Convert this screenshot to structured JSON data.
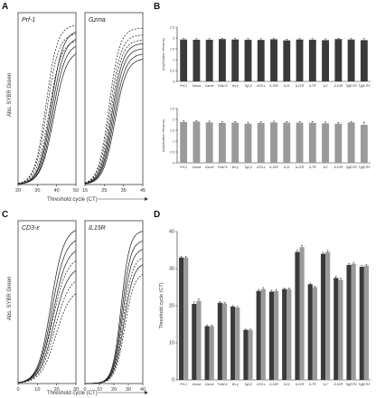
{
  "panels": {
    "A": "A",
    "B": "B",
    "C": "C",
    "D": "D"
  },
  "shared_labels": {
    "amp_ylabel": "Abs. SYBR Green",
    "amp_xlabel": "Threshold cycle (CT)"
  },
  "colors": {
    "dark_bar": "#3a3a3a",
    "light_bar": "#9a9a9a",
    "curve": "#1a1a1a"
  },
  "chart_data": [
    {
      "id": "A1",
      "type": "line",
      "title": "Prf-1",
      "xlim": [
        20,
        50
      ],
      "xticks": [
        20,
        30,
        40,
        50
      ],
      "ylabel": "Abs. SYBR Green",
      "series": [
        {
          "midpoint": 34.5,
          "slope": 0.34,
          "plateau": 0.95,
          "style": "dashed"
        },
        {
          "midpoint": 35.0,
          "slope": 0.33,
          "plateau": 0.9,
          "style": "dashed"
        },
        {
          "midpoint": 36.0,
          "slope": 0.32,
          "plateau": 0.86,
          "style": "dashed"
        },
        {
          "midpoint": 37.0,
          "slope": 0.32,
          "plateau": 0.92,
          "style": "solid"
        },
        {
          "midpoint": 37.5,
          "slope": 0.31,
          "plateau": 0.88,
          "style": "solid"
        },
        {
          "midpoint": 38.0,
          "slope": 0.31,
          "plateau": 0.84,
          "style": "solid"
        },
        {
          "midpoint": 38.5,
          "slope": 0.3,
          "plateau": 0.8,
          "style": "solid"
        }
      ]
    },
    {
      "id": "A2",
      "type": "line",
      "title": "Gzma",
      "xlim": [
        15,
        45
      ],
      "xticks": [
        15,
        25,
        35,
        45
      ],
      "series": [
        {
          "midpoint": 27.5,
          "slope": 0.36,
          "plateau": 0.93,
          "style": "dashed"
        },
        {
          "midpoint": 28.0,
          "slope": 0.35,
          "plateau": 0.89,
          "style": "dashed"
        },
        {
          "midpoint": 28.5,
          "slope": 0.35,
          "plateau": 0.86,
          "style": "dashed"
        },
        {
          "midpoint": 29.0,
          "slope": 0.34,
          "plateau": 0.84,
          "style": "solid"
        },
        {
          "midpoint": 29.5,
          "slope": 0.34,
          "plateau": 0.81,
          "style": "solid"
        },
        {
          "midpoint": 30.0,
          "slope": 0.33,
          "plateau": 0.78,
          "style": "solid"
        },
        {
          "midpoint": 30.5,
          "slope": 0.33,
          "plateau": 0.75,
          "style": "solid"
        }
      ]
    },
    {
      "id": "C1",
      "type": "line",
      "title": "CD3-ε",
      "xlim": [
        0,
        30
      ],
      "xticks": [
        0,
        10,
        20,
        30
      ],
      "ylabel": "Abs. SYBR Green",
      "series": [
        {
          "midpoint": 17.0,
          "slope": 0.3,
          "plateau": 0.98,
          "style": "solid"
        },
        {
          "midpoint": 17.5,
          "slope": 0.29,
          "plateau": 0.92,
          "style": "solid"
        },
        {
          "midpoint": 18.0,
          "slope": 0.28,
          "plateau": 0.86,
          "style": "solid"
        },
        {
          "midpoint": 18.0,
          "slope": 0.27,
          "plateau": 0.8,
          "style": "dashed"
        },
        {
          "midpoint": 18.5,
          "slope": 0.27,
          "plateau": 0.74,
          "style": "solid"
        },
        {
          "midpoint": 19.0,
          "slope": 0.26,
          "plateau": 0.68,
          "style": "dashed"
        },
        {
          "midpoint": 19.5,
          "slope": 0.26,
          "plateau": 0.6,
          "style": "dashed"
        }
      ]
    },
    {
      "id": "C2",
      "type": "line",
      "title": "IL15R",
      "xlim": [
        0,
        40
      ],
      "xticks": [
        0,
        10,
        20,
        30,
        40
      ],
      "series": [
        {
          "midpoint": 25.0,
          "slope": 0.34,
          "plateau": 0.96,
          "style": "solid"
        },
        {
          "midpoint": 25.5,
          "slope": 0.33,
          "plateau": 0.9,
          "style": "solid"
        },
        {
          "midpoint": 26.0,
          "slope": 0.32,
          "plateau": 0.85,
          "style": "solid"
        },
        {
          "midpoint": 26.5,
          "slope": 0.31,
          "plateau": 0.8,
          "style": "dashed"
        },
        {
          "midpoint": 27.0,
          "slope": 0.3,
          "plateau": 0.76,
          "style": "solid"
        },
        {
          "midpoint": 27.5,
          "slope": 0.3,
          "plateau": 0.7,
          "style": "dashed"
        }
      ]
    },
    {
      "id": "B1",
      "type": "bar",
      "ylabel": "Amplification efficiency",
      "ylim": [
        0,
        2.5
      ],
      "yticks": [
        0,
        0.5,
        1.0,
        1.5,
        2.0,
        2.5
      ],
      "categories": [
        "Prf-1",
        "Gzma",
        "Gzmb",
        "Tnfsf-6",
        "Ifn-γ",
        "Tgf-β",
        "CD3-ε",
        "IL15R",
        "IL21",
        "IL21R",
        "IL7R",
        "IL2",
        "IL10R",
        "Tgfβ R2",
        "Tgfβ R3"
      ],
      "values": [
        1.93,
        1.92,
        1.92,
        1.95,
        1.93,
        1.92,
        1.91,
        1.94,
        1.89,
        1.93,
        1.92,
        1.9,
        1.95,
        1.93,
        1.9
      ],
      "errors": [
        0.06,
        0.05,
        0.05,
        0.04,
        0.05,
        0.06,
        0.05,
        0.05,
        0.06,
        0.05,
        0.05,
        0.06,
        0.04,
        0.05,
        0.07
      ],
      "color": "dark"
    },
    {
      "id": "B2",
      "type": "bar",
      "ylabel": "Amplification efficiency",
      "ylim": [
        0,
        2.5
      ],
      "yticks": [
        0,
        0.5,
        1.0,
        1.5,
        2.0,
        2.5
      ],
      "categories": [
        "Prf-1",
        "Gzma",
        "Gzmb",
        "Tnfsf-6",
        "Ifn-γ",
        "Tgf-β",
        "CD3-ε",
        "IL15R",
        "IL21",
        "IL21R",
        "IL7R",
        "IL2",
        "IL10R",
        "Tgfβ R2",
        "Tgfβ R3"
      ],
      "values": [
        1.88,
        1.9,
        1.86,
        1.84,
        1.85,
        1.8,
        1.84,
        1.86,
        1.85,
        1.85,
        1.84,
        1.82,
        1.8,
        1.86,
        1.75
      ],
      "errors": [
        0.05,
        0.05,
        0.06,
        0.05,
        0.05,
        0.07,
        0.05,
        0.06,
        0.05,
        0.05,
        0.06,
        0.06,
        0.06,
        0.05,
        0.12
      ],
      "color": "light"
    },
    {
      "id": "D",
      "type": "bar",
      "ylabel": "Threshold cycle (CT)",
      "ylim": [
        0,
        40
      ],
      "yticks": [
        0,
        10,
        20,
        30,
        40
      ],
      "categories": [
        "Prf-1",
        "Gzma",
        "Gzmb",
        "Tnfsf-6",
        "Ifn-γ",
        "Tgf-β",
        "CD3-ε",
        "IL15R",
        "IL21",
        "IL21R",
        "IL7R",
        "IL2",
        "IL10R",
        "Tgfβ R2",
        "Tgfβ R3"
      ],
      "series": [
        {
          "values": [
            33.0,
            20.5,
            14.5,
            20.8,
            19.8,
            13.5,
            24.0,
            23.8,
            24.5,
            34.5,
            25.8,
            34.0,
            27.5,
            31.0,
            30.5
          ],
          "errors": [
            0.3,
            0.5,
            0.3,
            0.3,
            0.3,
            0.2,
            0.4,
            0.4,
            0.3,
            0.5,
            0.3,
            0.4,
            0.5,
            0.4,
            0.3
          ],
          "color": "dark"
        },
        {
          "values": [
            33.0,
            21.3,
            14.5,
            20.6,
            19.5,
            13.5,
            24.5,
            24.0,
            24.5,
            35.8,
            25.0,
            34.5,
            27.0,
            31.3,
            30.8
          ],
          "errors": [
            0.3,
            0.5,
            0.3,
            0.3,
            0.3,
            0.2,
            0.4,
            0.4,
            0.3,
            0.5,
            0.3,
            0.4,
            0.5,
            0.4,
            0.3
          ],
          "color": "light"
        }
      ]
    }
  ]
}
